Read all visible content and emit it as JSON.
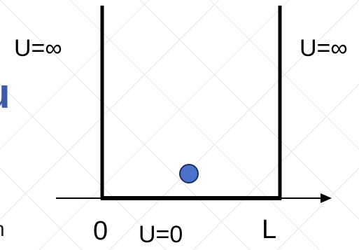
{
  "labels": {
    "potential_left": "U=∞",
    "potential_right": "U=∞",
    "potential_bottom": "U=0",
    "origin": "0",
    "width": "L"
  },
  "fragments": {
    "blue_edge": "u",
    "dark_edge": "n"
  },
  "colors": {
    "walls": "#000000",
    "particle_fill": "#4a72c8",
    "particle_stroke": "#1f2f63",
    "blue_fragment": "#3f5aa8",
    "background_pattern": "#e7e7ef"
  }
}
